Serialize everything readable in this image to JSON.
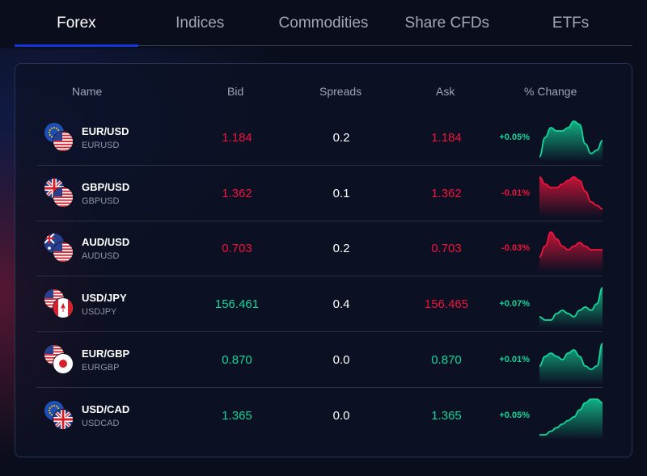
{
  "tabs": [
    {
      "label": "Forex",
      "active": true
    },
    {
      "label": "Indices"
    },
    {
      "label": "Commodities"
    },
    {
      "label": "Share CFDs"
    },
    {
      "label": "ETFs"
    }
  ],
  "columns": {
    "name": "Name",
    "bid": "Bid",
    "spreads": "Spreads",
    "ask": "Ask",
    "change": "% Change"
  },
  "colors": {
    "up": "#13d69a",
    "down": "#f0143c",
    "accent": "#1336d8"
  },
  "rows": [
    {
      "pair": "EUR/USD",
      "code": "EURUSD",
      "flags": [
        "eu",
        "us"
      ],
      "bid": "1.184",
      "bid_dir": "down",
      "spread": "0.2",
      "ask": "1.184",
      "ask_dir": "down",
      "change": "+0.05%",
      "dir": "up",
      "spark": [
        0,
        6,
        9,
        8,
        8,
        9,
        11,
        10,
        4,
        1,
        2,
        5
      ]
    },
    {
      "pair": "GBP/USD",
      "code": "GBPUSD",
      "flags": [
        "gb",
        "us"
      ],
      "bid": "1.362",
      "bid_dir": "down",
      "spread": "0.1",
      "ask": "1.362",
      "ask_dir": "down",
      "change": "-0.01%",
      "dir": "down",
      "spark": [
        10,
        8,
        7,
        7,
        8,
        9,
        10,
        9,
        6,
        3,
        2,
        1
      ]
    },
    {
      "pair": "AUD/USD",
      "code": "AUDUSD",
      "flags": [
        "au",
        "us"
      ],
      "bid": "0.703",
      "bid_dir": "down",
      "spread": "0.2",
      "ask": "0.703",
      "ask_dir": "down",
      "change": "-0.03%",
      "dir": "down",
      "spark": [
        3,
        6,
        10,
        8,
        6,
        5,
        6,
        7,
        6,
        5,
        5,
        5
      ]
    },
    {
      "pair": "USD/JPY",
      "code": "USDJPY",
      "flags": [
        "us",
        "ca"
      ],
      "bid": "156.461",
      "bid_dir": "up",
      "spread": "0.4",
      "ask": "156.465",
      "ask_dir": "down",
      "change": "+0.07%",
      "dir": "up",
      "spark": [
        2,
        1,
        1,
        3,
        4,
        3,
        2,
        4,
        5,
        4,
        6,
        11
      ]
    },
    {
      "pair": "EUR/GBP",
      "code": "EURGBP",
      "flags": [
        "us",
        "jp"
      ],
      "bid": "0.870",
      "bid_dir": "up",
      "spread": "0.0",
      "ask": "0.870",
      "ask_dir": "up",
      "change": "+0.01%",
      "dir": "up",
      "spark": [
        4,
        7,
        8,
        7,
        6,
        8,
        9,
        7,
        4,
        3,
        4,
        11
      ]
    },
    {
      "pair": "USD/CAD",
      "code": "USDCAD",
      "flags": [
        "eu",
        "gb"
      ],
      "bid": "1.365",
      "bid_dir": "up",
      "spread": "0.0",
      "ask": "1.365",
      "ask_dir": "up",
      "change": "+0.05%",
      "dir": "up",
      "spark": [
        0,
        0,
        1,
        2,
        3,
        4,
        5,
        7,
        9,
        10,
        10,
        9
      ]
    }
  ]
}
